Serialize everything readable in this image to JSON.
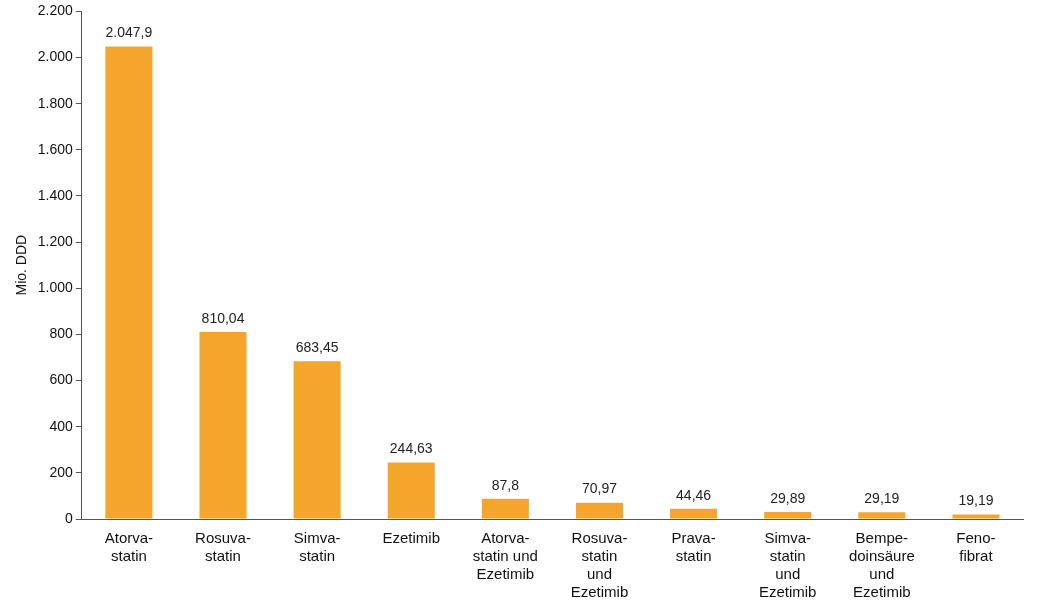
{
  "chart_data": {
    "type": "bar",
    "ylabel": "Mio. DDD",
    "categories": [
      "Atorva-\nstatin",
      "Rosuva-\nstatin",
      "Simva-\nstatin",
      "Ezetimib",
      "Atorva-\nstatin und\nEzetimib",
      "Rosuva-\nstatin\nund\nEzetimib",
      "Prava-\nstatin",
      "Simva-\nstatin\nund\nEzetimib",
      "Bempe-\ndoinsäure\nund\nEzetimib",
      "Feno-\nfibrat"
    ],
    "values": [
      2047.9,
      810.04,
      683.45,
      244.63,
      87.8,
      70.97,
      44.46,
      29.89,
      29.19,
      19.19
    ],
    "value_labels": [
      "2.047,9",
      "810,04",
      "683,45",
      "244,63",
      "87,8",
      "70,97",
      "44,46",
      "29,89",
      "29,19",
      "19,19"
    ],
    "color": "#f4a52c",
    "grid": false,
    "legend": false,
    "ylim": [
      0,
      2200
    ],
    "yticks": [
      {
        "value": 0,
        "label": "0"
      },
      {
        "value": 200,
        "label": "200"
      },
      {
        "value": 400,
        "label": "400"
      },
      {
        "value": 600,
        "label": "600"
      },
      {
        "value": 800,
        "label": "800"
      },
      {
        "value": 1000,
        "label": "1.000"
      },
      {
        "value": 1200,
        "label": "1.200"
      },
      {
        "value": 1400,
        "label": "1.400"
      },
      {
        "value": 1600,
        "label": "1.600"
      },
      {
        "value": 1800,
        "label": "1.800"
      },
      {
        "value": 2000,
        "label": "2.000"
      },
      {
        "value": 2200,
        "label": "2.200"
      }
    ]
  }
}
